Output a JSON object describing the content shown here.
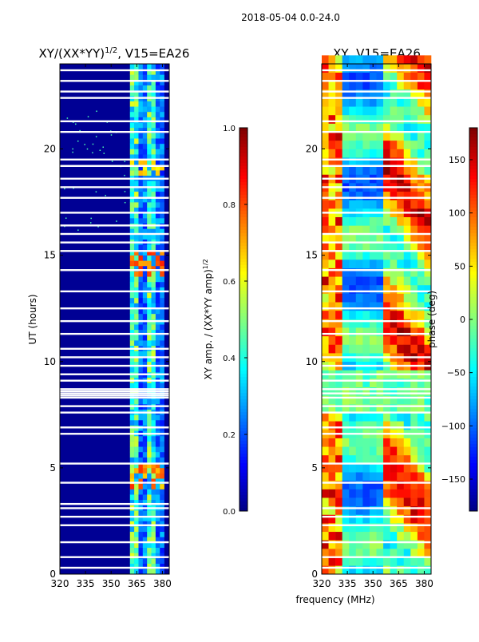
{
  "figure": {
    "suptitle": "2018-05-04 0.0-24.0",
    "xlabel_shared": "frequency (MHz)"
  },
  "chart_data": [
    {
      "type": "heatmap",
      "title_main": "XY/(XX*YY)",
      "title_exp": "1/2",
      "title_tail": ", V15=EA26",
      "xlim": [
        320,
        384
      ],
      "ylim": [
        0,
        24
      ],
      "xticks": [
        320,
        335,
        350,
        365,
        380
      ],
      "yticks": [
        0,
        5,
        10,
        15,
        20
      ],
      "ylabel": "UT (hours)",
      "colormap": "jet",
      "colorbar": {
        "range": [
          0.0,
          1.0
        ],
        "ticks": [
          "0.0",
          "0.2",
          "0.4",
          "0.6",
          "0.8",
          "1.0"
        ],
        "label_main": "XY amp. / (XX*YY amp)",
        "label_exp": "1/2"
      },
      "active_band_mhz": [
        361,
        380
      ],
      "background_value": 0.02,
      "flagged_rows_hours": [
        0.3,
        0.8,
        1.5,
        2.3,
        2.7,
        3.1,
        3.3,
        4.3,
        5.2,
        6.6,
        6.9,
        7.6,
        7.9,
        8.3,
        8.4,
        8.5,
        8.6,
        8.7,
        9.1,
        9.4,
        9.8,
        10.2,
        10.6,
        11.3,
        11.9,
        12.5,
        13.3,
        14.3,
        15.2,
        15.6,
        16.0,
        16.4,
        17.0,
        17.7,
        18.2,
        18.6,
        19.2,
        19.5,
        20.8,
        21.3,
        22.4,
        22.7,
        23.2,
        23.7
      ]
    },
    {
      "type": "heatmap",
      "title": "XY, V15=EA26",
      "xlim": [
        320,
        384
      ],
      "ylim": [
        0,
        24
      ],
      "xticks": [
        320,
        335,
        350,
        365,
        380
      ],
      "yticks": [
        0,
        5,
        10,
        15,
        20
      ],
      "colormap": "jet",
      "colorbar": {
        "range": [
          -180,
          180
        ],
        "ticks": [
          "150",
          "100",
          "50",
          "0",
          "−50",
          "−100",
          "−150"
        ],
        "tick_values": [
          150,
          100,
          50,
          0,
          -50,
          -100,
          -150
        ],
        "label": "phase (deg)"
      },
      "flagged_rows_hours": [
        0.3,
        0.8,
        1.5,
        2.3,
        2.7,
        3.1,
        4.3,
        5.2,
        6.6,
        6.9,
        7.6,
        7.9,
        8.3,
        8.5,
        8.7,
        9.1,
        9.4,
        9.8,
        10.2,
        11.3,
        11.9,
        12.5,
        13.3,
        14.3,
        15.2,
        15.6,
        16.0,
        17.0,
        17.7,
        18.2,
        18.6,
        19.2,
        19.5,
        20.8,
        21.3,
        22.4,
        22.7,
        23.2,
        23.7
      ]
    }
  ]
}
